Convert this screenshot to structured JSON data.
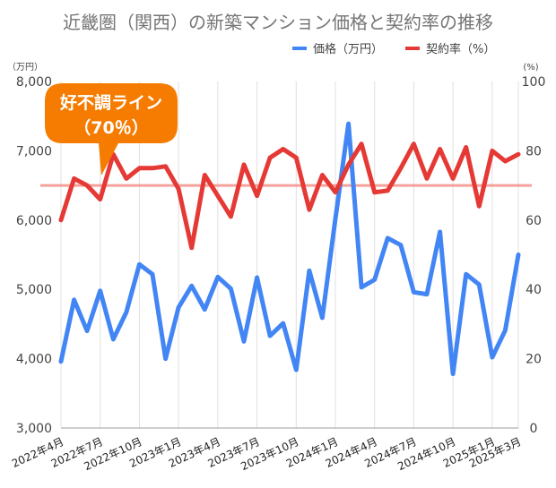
{
  "chart_data": {
    "type": "line",
    "title": "近畿圏（関西）の新築マンション価格と契約率の推移",
    "y_left_unit": "（万円）",
    "y_right_unit": "(%)",
    "y_left_ticks": [
      "3,000",
      "4,000",
      "5,000",
      "6,000",
      "7,000",
      "8,000"
    ],
    "y_left_lim": [
      3000,
      8000
    ],
    "y_right_ticks": [
      "0",
      "20",
      "40",
      "60",
      "80",
      "100"
    ],
    "y_right_lim": [
      0,
      100
    ],
    "x_tick_labels": [
      "2022年4月",
      "2022年7月",
      "2022年10月",
      "2023年1月",
      "2023年4月",
      "2023年7月",
      "2023年10月",
      "2024年1月",
      "2024年4月",
      "2024年7月",
      "2024年10月",
      "2025年1月",
      "2025年3月"
    ],
    "x": [
      "2022年4月",
      "2022年5月",
      "2022年6月",
      "2022年7月",
      "2022年8月",
      "2022年9月",
      "2022年10月",
      "2022年11月",
      "2022年12月",
      "2023年1月",
      "2023年2月",
      "2023年3月",
      "2023年4月",
      "2023年5月",
      "2023年6月",
      "2023年7月",
      "2023年8月",
      "2023年9月",
      "2023年10月",
      "2023年11月",
      "2023年12月",
      "2024年1月",
      "2024年2月",
      "2024年3月",
      "2024年4月",
      "2024年5月",
      "2024年6月",
      "2024年7月",
      "2024年8月",
      "2024年9月",
      "2024年10月",
      "2024年11月",
      "2024年12月",
      "2025年1月",
      "2025年2月",
      "2025年3月"
    ],
    "series": [
      {
        "name": "価格（万円）",
        "axis": "left",
        "color": "#4285f4",
        "values": [
          3960,
          4850,
          4400,
          4980,
          4280,
          4670,
          5360,
          5220,
          4000,
          4740,
          5050,
          4710,
          5180,
          5010,
          4250,
          5170,
          4330,
          4510,
          3840,
          5270,
          4590,
          6020,
          7390,
          5030,
          5140,
          5740,
          5640,
          4960,
          4930,
          5830,
          3780,
          5220,
          5070,
          4020,
          4410,
          5500
        ]
      },
      {
        "name": "契約率（%）",
        "axis": "right",
        "color": "#e53935",
        "values": [
          60,
          72,
          70,
          66,
          79,
          72,
          75,
          75,
          75.5,
          69,
          52,
          73,
          67,
          61,
          76,
          67,
          78,
          80.5,
          78,
          63,
          73,
          68,
          76,
          82,
          68,
          68.5,
          75,
          82,
          72,
          80.5,
          72,
          81,
          64,
          80,
          77,
          79
        ]
      }
    ],
    "reference_line": {
      "axis": "right",
      "value": 70,
      "color": "#f28b82"
    },
    "callout": {
      "line1": "好不調ライン",
      "line2": "（70％）",
      "color": "#f57c00"
    },
    "legend_position": "top-right",
    "grid": "vertical"
  }
}
